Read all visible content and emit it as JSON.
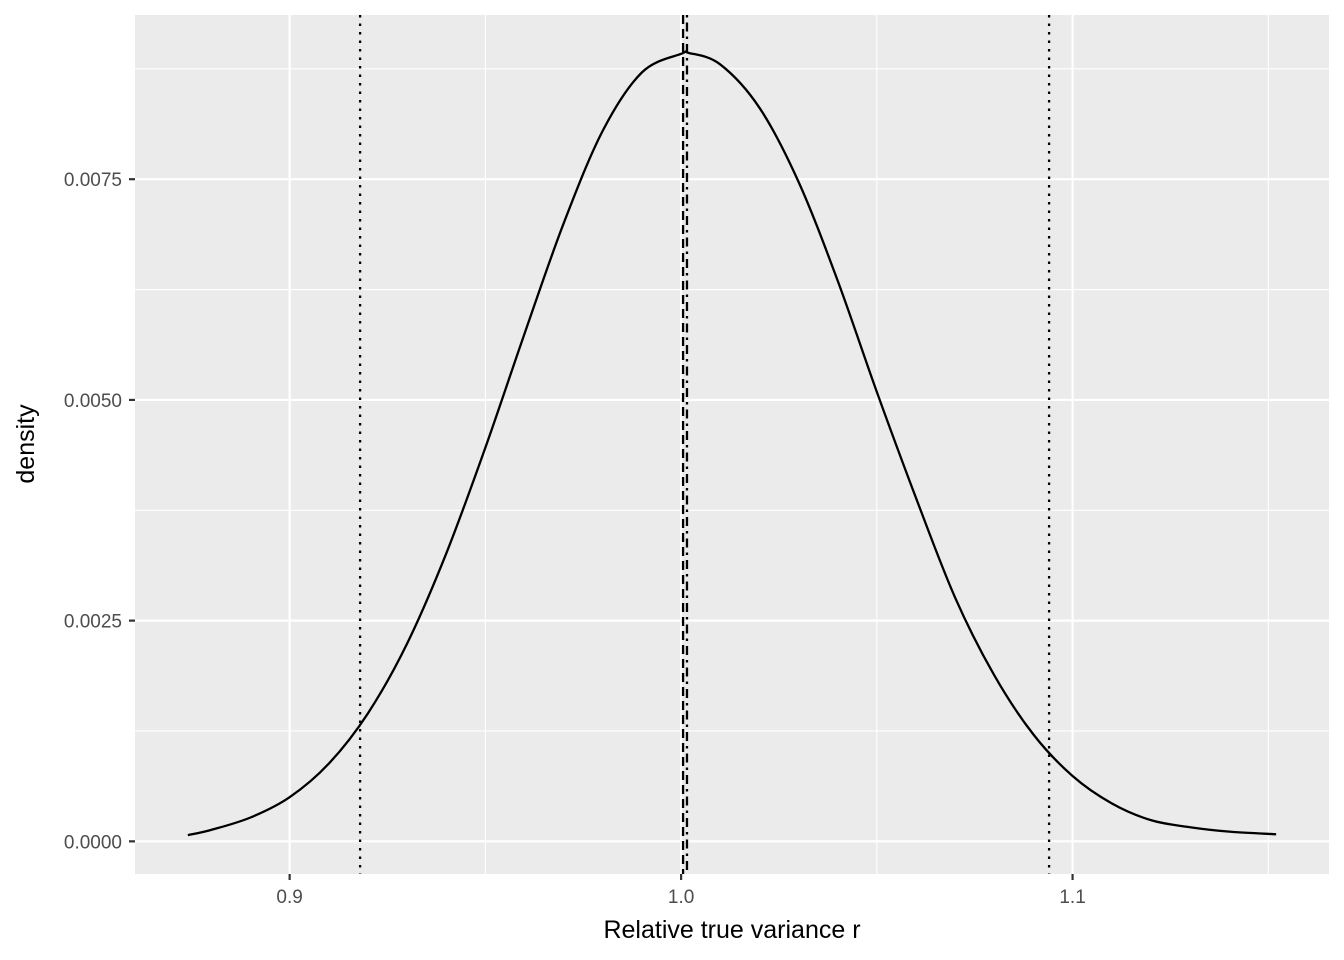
{
  "chart_data": {
    "type": "line",
    "title": "",
    "xlabel": "Relative true variance r",
    "ylabel": "density",
    "xlim": [
      0.8605,
      1.1655
    ],
    "ylim": [
      -0.00037,
      0.00936
    ],
    "grid": true,
    "legend": "none",
    "x_ticks": [
      {
        "value": 0.9,
        "label": "0.9"
      },
      {
        "value": 1.0,
        "label": "1.0"
      },
      {
        "value": 1.1,
        "label": "1.1"
      }
    ],
    "x_minor_ticks": [
      0.85,
      0.95,
      1.05,
      1.15
    ],
    "y_ticks": [
      {
        "value": 0.0,
        "label": "0.0000"
      },
      {
        "value": 0.0025,
        "label": "0.0025"
      },
      {
        "value": 0.005,
        "label": "0.0050"
      },
      {
        "value": 0.0075,
        "label": "0.0075"
      }
    ],
    "y_minor_ticks": [
      0.00125,
      0.00375,
      0.00625,
      0.00875
    ],
    "series": [
      {
        "x": [
          0.874,
          0.88,
          0.89,
          0.9,
          0.91,
          0.92,
          0.93,
          0.94,
          0.95,
          0.96,
          0.97,
          0.98,
          0.99,
          1.0,
          1.002,
          1.01,
          1.02,
          1.03,
          1.04,
          1.05,
          1.06,
          1.07,
          1.08,
          1.09,
          1.1,
          1.11,
          1.12,
          1.13,
          1.14,
          1.152
        ],
        "y": [
          7e-05,
          0.00013,
          0.00027,
          0.0005,
          0.00088,
          0.00145,
          0.00224,
          0.00326,
          0.00446,
          0.00575,
          0.007,
          0.00805,
          0.00871,
          0.00892,
          0.00893,
          0.0088,
          0.00831,
          0.00747,
          0.00635,
          0.00509,
          0.00389,
          0.00276,
          0.00188,
          0.00121,
          0.00074,
          0.00043,
          0.00024,
          0.00016,
          0.00011,
          8e-05
        ],
        "color": "#000000",
        "linetype": "solid"
      }
    ],
    "reference_lines": [
      {
        "x": 0.918,
        "linetype": "dotted"
      },
      {
        "x": 1.0005,
        "linetype": "dashed"
      },
      {
        "x": 1.0015,
        "linetype": "dotdash"
      },
      {
        "x": 1.094,
        "linetype": "dotted"
      }
    ],
    "panel_color": "#ebebeb",
    "grid_color": "#ffffff"
  }
}
